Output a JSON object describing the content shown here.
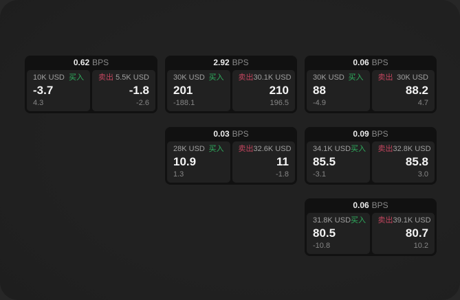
{
  "unit_label": "BPS",
  "buy_label": "买入",
  "sell_label": "卖出",
  "colors": {
    "background": "#1f1f1f",
    "card_background": "#111111",
    "panel_background": "#212121",
    "buy_accent": "#2fae5e",
    "sell_accent": "#c2455e",
    "primary_text": "#f4f4f4",
    "secondary_text": "#9e9e9e"
  },
  "cards": [
    {
      "bps": "0.62",
      "col": 1,
      "row": 1,
      "buy": {
        "amount": "10K USD",
        "value": "-3.7",
        "sub": "4.3"
      },
      "sell": {
        "amount": "5.5K USD",
        "value": "-1.8",
        "sub": "-2.6"
      }
    },
    {
      "bps": "2.92",
      "col": 2,
      "row": 1,
      "buy": {
        "amount": "30K USD",
        "value": "201",
        "sub": "-188.1"
      },
      "sell": {
        "amount": "30.1K USD",
        "value": "210",
        "sub": "196.5"
      }
    },
    {
      "bps": "0.06",
      "col": 3,
      "row": 1,
      "buy": {
        "amount": "30K USD",
        "value": "88",
        "sub": "-4.9"
      },
      "sell": {
        "amount": "30K USD",
        "value": "88.2",
        "sub": "4.7"
      }
    },
    {
      "bps": "0.03",
      "col": 2,
      "row": 2,
      "buy": {
        "amount": "28K USD",
        "value": "10.9",
        "sub": "1.3"
      },
      "sell": {
        "amount": "32.6K USD",
        "value": "11",
        "sub": "-1.8"
      }
    },
    {
      "bps": "0.09",
      "col": 3,
      "row": 2,
      "buy": {
        "amount": "34.1K USD",
        "value": "85.5",
        "sub": "-3.1"
      },
      "sell": {
        "amount": "32.8K USD",
        "value": "85.8",
        "sub": "3.0"
      }
    },
    {
      "bps": "0.06",
      "col": 3,
      "row": 3,
      "buy": {
        "amount": "31.8K USD",
        "value": "80.5",
        "sub": "-10.8"
      },
      "sell": {
        "amount": "39.1K USD",
        "value": "80.7",
        "sub": "10.2"
      }
    }
  ]
}
